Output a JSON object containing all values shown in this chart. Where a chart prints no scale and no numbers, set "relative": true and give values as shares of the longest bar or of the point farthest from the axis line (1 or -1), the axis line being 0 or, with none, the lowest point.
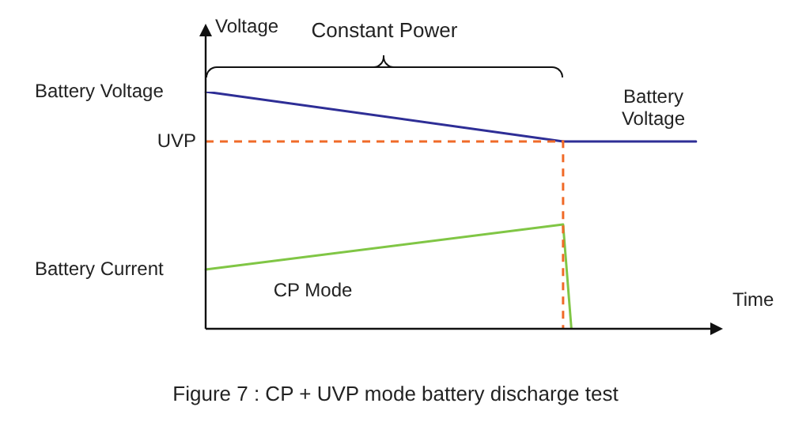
{
  "chart_data": {
    "type": "line",
    "relative": true,
    "title": "Figure 7 : CP + UVP mode battery discharge test",
    "xlabel": "Time",
    "ylabel": "Voltage",
    "marker": "none",
    "legend": false,
    "line_style": "solid",
    "categories": [
      null,
      null,
      null,
      null,
      null,
      null,
      null,
      null,
      null,
      null,
      null,
      null,
      null,
      null,
      null,
      null,
      null,
      null,
      null,
      null,
      null,
      null,
      null,
      null,
      null,
      null,
      null,
      null,
      null,
      null,
      null,
      null,
      null,
      null,
      null,
      null,
      null,
      null,
      null,
      null,
      null,
      null,
      null,
      null,
      null,
      null,
      null,
      null,
      null,
      null,
      null,
      null,
      null,
      null,
      null,
      null,
      null,
      null,
      null,
      null
    ],
    "series": [
      {
        "name": "Battery Voltage",
        "color": "#2e2e96",
        "values": [
          1,
          null,
          null,
          null,
          null,
          null,
          null,
          null,
          null,
          null,
          null,
          null,
          null,
          null,
          null,
          null,
          null,
          null,
          null,
          null,
          null,
          null,
          null,
          null,
          null,
          null,
          null,
          null,
          null,
          null,
          null,
          null,
          null,
          null,
          null,
          null,
          null,
          null,
          null,
          null,
          null,
          null,
          null,
          0.79,
          null,
          null,
          null,
          null,
          null,
          null,
          null,
          null,
          null,
          null,
          null,
          null,
          null,
          null,
          null,
          0.79
        ]
      },
      {
        "name": "Battery Current",
        "color": "#80c645",
        "values": [
          0.25,
          null,
          null,
          null,
          null,
          null,
          null,
          null,
          null,
          null,
          null,
          null,
          null,
          null,
          null,
          null,
          null,
          null,
          null,
          null,
          null,
          null,
          null,
          null,
          null,
          null,
          null,
          null,
          null,
          null,
          null,
          null,
          null,
          null,
          null,
          null,
          null,
          null,
          null,
          null,
          null,
          null,
          null,
          0.44,
          0,
          null,
          null,
          null,
          null,
          null,
          null,
          null,
          null,
          null,
          null,
          null,
          null,
          null,
          null,
          null
        ]
      }
    ],
    "ref_lines": [
      {
        "axis": "y",
        "value": 0.79,
        "label": "UVP",
        "color": "#f06a28",
        "line_style": "dashed"
      }
    ],
    "annotations": [
      "Constant Power",
      "Battery Voltage",
      "CP Mode"
    ]
  }
}
